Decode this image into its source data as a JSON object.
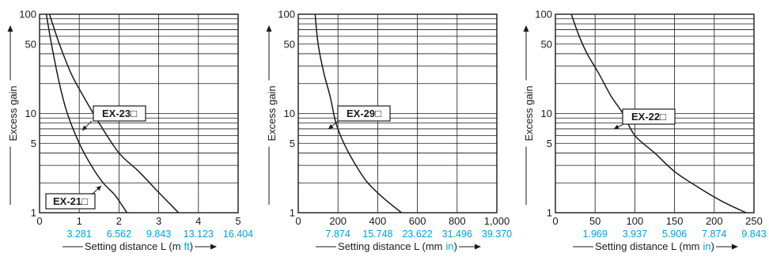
{
  "colors": {
    "ink": "#1a1a1a",
    "grid": "#1a1a1a",
    "accent": "#00a0e0",
    "background": "#ffffff"
  },
  "chart_data": [
    {
      "type": "line",
      "ylabel": "Excess gain",
      "yscale": "log",
      "ylim": [
        1,
        100
      ],
      "y_ticks": [
        "1",
        "5",
        "10",
        "50",
        "100"
      ],
      "xlim": [
        0,
        5
      ],
      "x_ticks": [
        "0",
        "1",
        "2",
        "3",
        "4",
        "5"
      ],
      "x_ticks_alt": [
        "3.281",
        "6.562",
        "9.843",
        "13.123",
        "16.404"
      ],
      "xlabel_main": "Setting distance L (m",
      "xlabel_alt": "ft",
      "xlabel_close": ")",
      "series": [
        {
          "name": "EX-21□",
          "x": [
            0.17,
            0.3,
            0.5,
            0.7,
            1.0,
            1.3,
            1.6,
            1.9,
            2.2
          ],
          "y": [
            100,
            50,
            20,
            10,
            5,
            3,
            2,
            1.5,
            1
          ]
        },
        {
          "name": "EX-23□",
          "x": [
            0.25,
            0.5,
            0.8,
            1.1,
            1.5,
            2.0,
            2.5,
            3.0,
            3.5
          ],
          "y": [
            100,
            50,
            25,
            15,
            8,
            4,
            2.6,
            1.6,
            1
          ]
        }
      ]
    },
    {
      "type": "line",
      "ylabel": "Excess gain",
      "yscale": "log",
      "ylim": [
        1,
        100
      ],
      "y_ticks": [
        "1",
        "5",
        "10",
        "50",
        "100"
      ],
      "xlim": [
        0,
        1000
      ],
      "x_ticks": [
        "0",
        "200",
        "400",
        "600",
        "800",
        "1,000"
      ],
      "x_ticks_alt": [
        "7.874",
        "15.748",
        "23.622",
        "31.496",
        "39.370"
      ],
      "xlabel_main": "Setting distance L (mm",
      "xlabel_alt": "in",
      "xlabel_close": ")",
      "series": [
        {
          "name": "EX-29□",
          "x": [
            85,
            100,
            130,
            160,
            190,
            230,
            290,
            350,
            430,
            520
          ],
          "y": [
            100,
            50,
            25,
            15,
            8,
            5,
            3,
            2,
            1.4,
            1
          ]
        }
      ]
    },
    {
      "type": "line",
      "ylabel": "Excess gain",
      "yscale": "log",
      "ylim": [
        1,
        100
      ],
      "y_ticks": [
        "1",
        "5",
        "10",
        "50",
        "100"
      ],
      "xlim": [
        0,
        250
      ],
      "x_ticks": [
        "0",
        "50",
        "100",
        "150",
        "200",
        "250"
      ],
      "x_ticks_alt": [
        "1.969",
        "3.937",
        "5.906",
        "7.874",
        "9.843"
      ],
      "xlabel_main": "Setting distance L (mm",
      "xlabel_alt": "in",
      "xlabel_close": ")",
      "series": [
        {
          "name": "EX-22□",
          "x": [
            20,
            30,
            40,
            55,
            70,
            85,
            100,
            125,
            150,
            180,
            210,
            240
          ],
          "y": [
            100,
            60,
            40,
            25,
            15,
            10,
            6,
            4,
            2.6,
            1.8,
            1.3,
            1
          ]
        }
      ]
    }
  ]
}
